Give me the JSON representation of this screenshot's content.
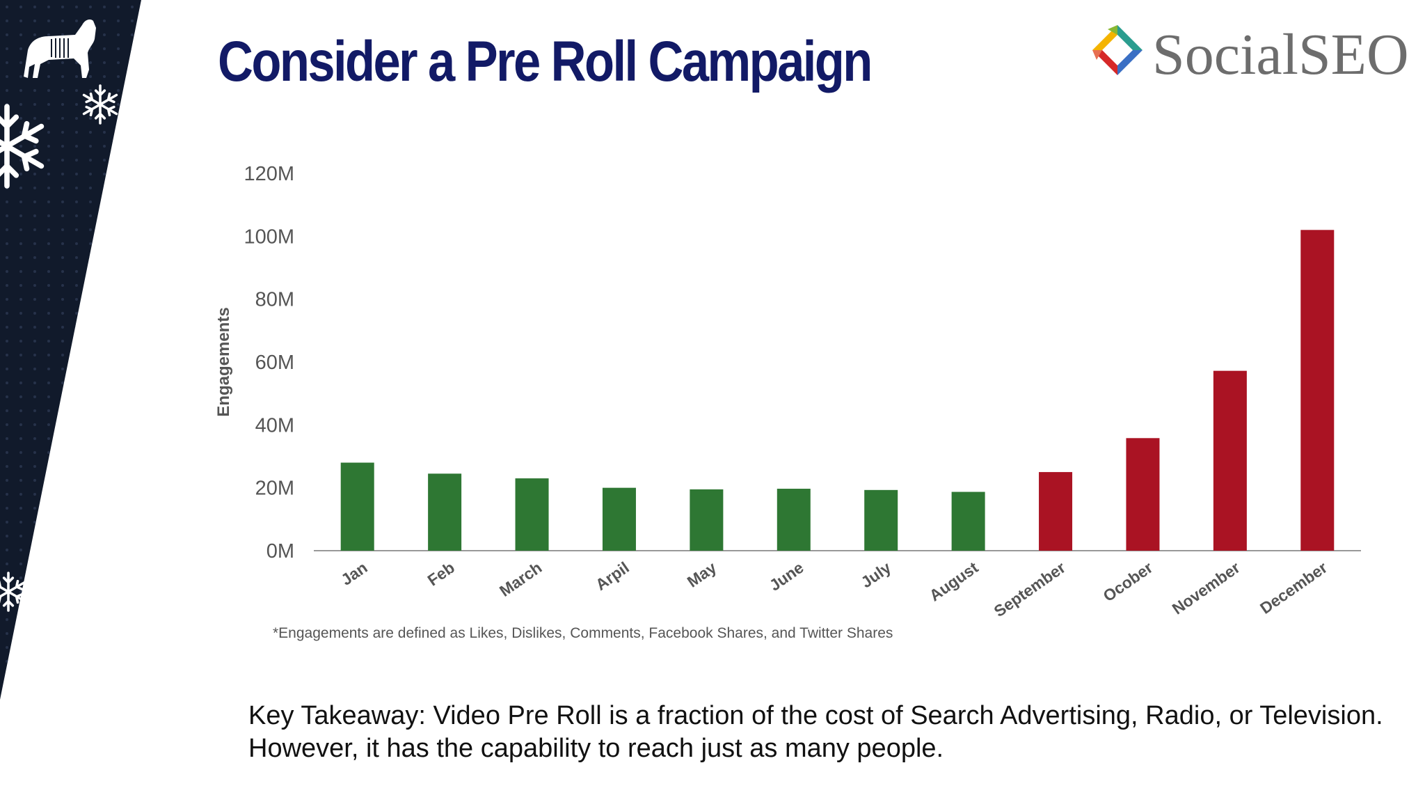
{
  "slide": {
    "title": "Consider a Pre Roll Campaign",
    "logo_text": "SocialSEO",
    "footnote": "*Engagements are defined as Likes, Dislikes, Comments, Facebook Shares, and Twitter Shares",
    "takeaway": "Key Takeaway: Video Pre Roll is a fraction of the cost of Search Advertising, Radio, or Television. However, it has the capability to reach just as many people."
  },
  "icons": {
    "dog": "dog-icon",
    "snowflake": "snowflake-icon",
    "logo": "socialseo-logo-icon"
  },
  "colors": {
    "title": "#121a66",
    "sidebar": "#111a2b",
    "bar_green": "#2e7733",
    "bar_red": "#aa1323",
    "axis": "#999999",
    "axis_text": "#555555"
  },
  "chart_data": {
    "type": "bar",
    "title": "",
    "xlabel": "",
    "ylabel": "Engagements",
    "categories": [
      "Jan",
      "Feb",
      "March",
      "Arpil",
      "May",
      "June",
      "July",
      "August",
      "September",
      "Ocober",
      "November",
      "December"
    ],
    "values": [
      28,
      24.5,
      23,
      20,
      19.5,
      19.7,
      19.3,
      18.7,
      25,
      35.8,
      57.2,
      102
    ],
    "bar_colors": [
      "#2e7733",
      "#2e7733",
      "#2e7733",
      "#2e7733",
      "#2e7733",
      "#2e7733",
      "#2e7733",
      "#2e7733",
      "#aa1323",
      "#aa1323",
      "#aa1323",
      "#aa1323"
    ],
    "y_ticks": [
      "0M",
      "20M",
      "40M",
      "60M",
      "80M",
      "100M",
      "120M"
    ],
    "y_tick_values": [
      0,
      20,
      40,
      60,
      80,
      100,
      120
    ],
    "ylim": [
      0,
      120
    ],
    "unit": "M",
    "grid": false,
    "legend": "none"
  }
}
